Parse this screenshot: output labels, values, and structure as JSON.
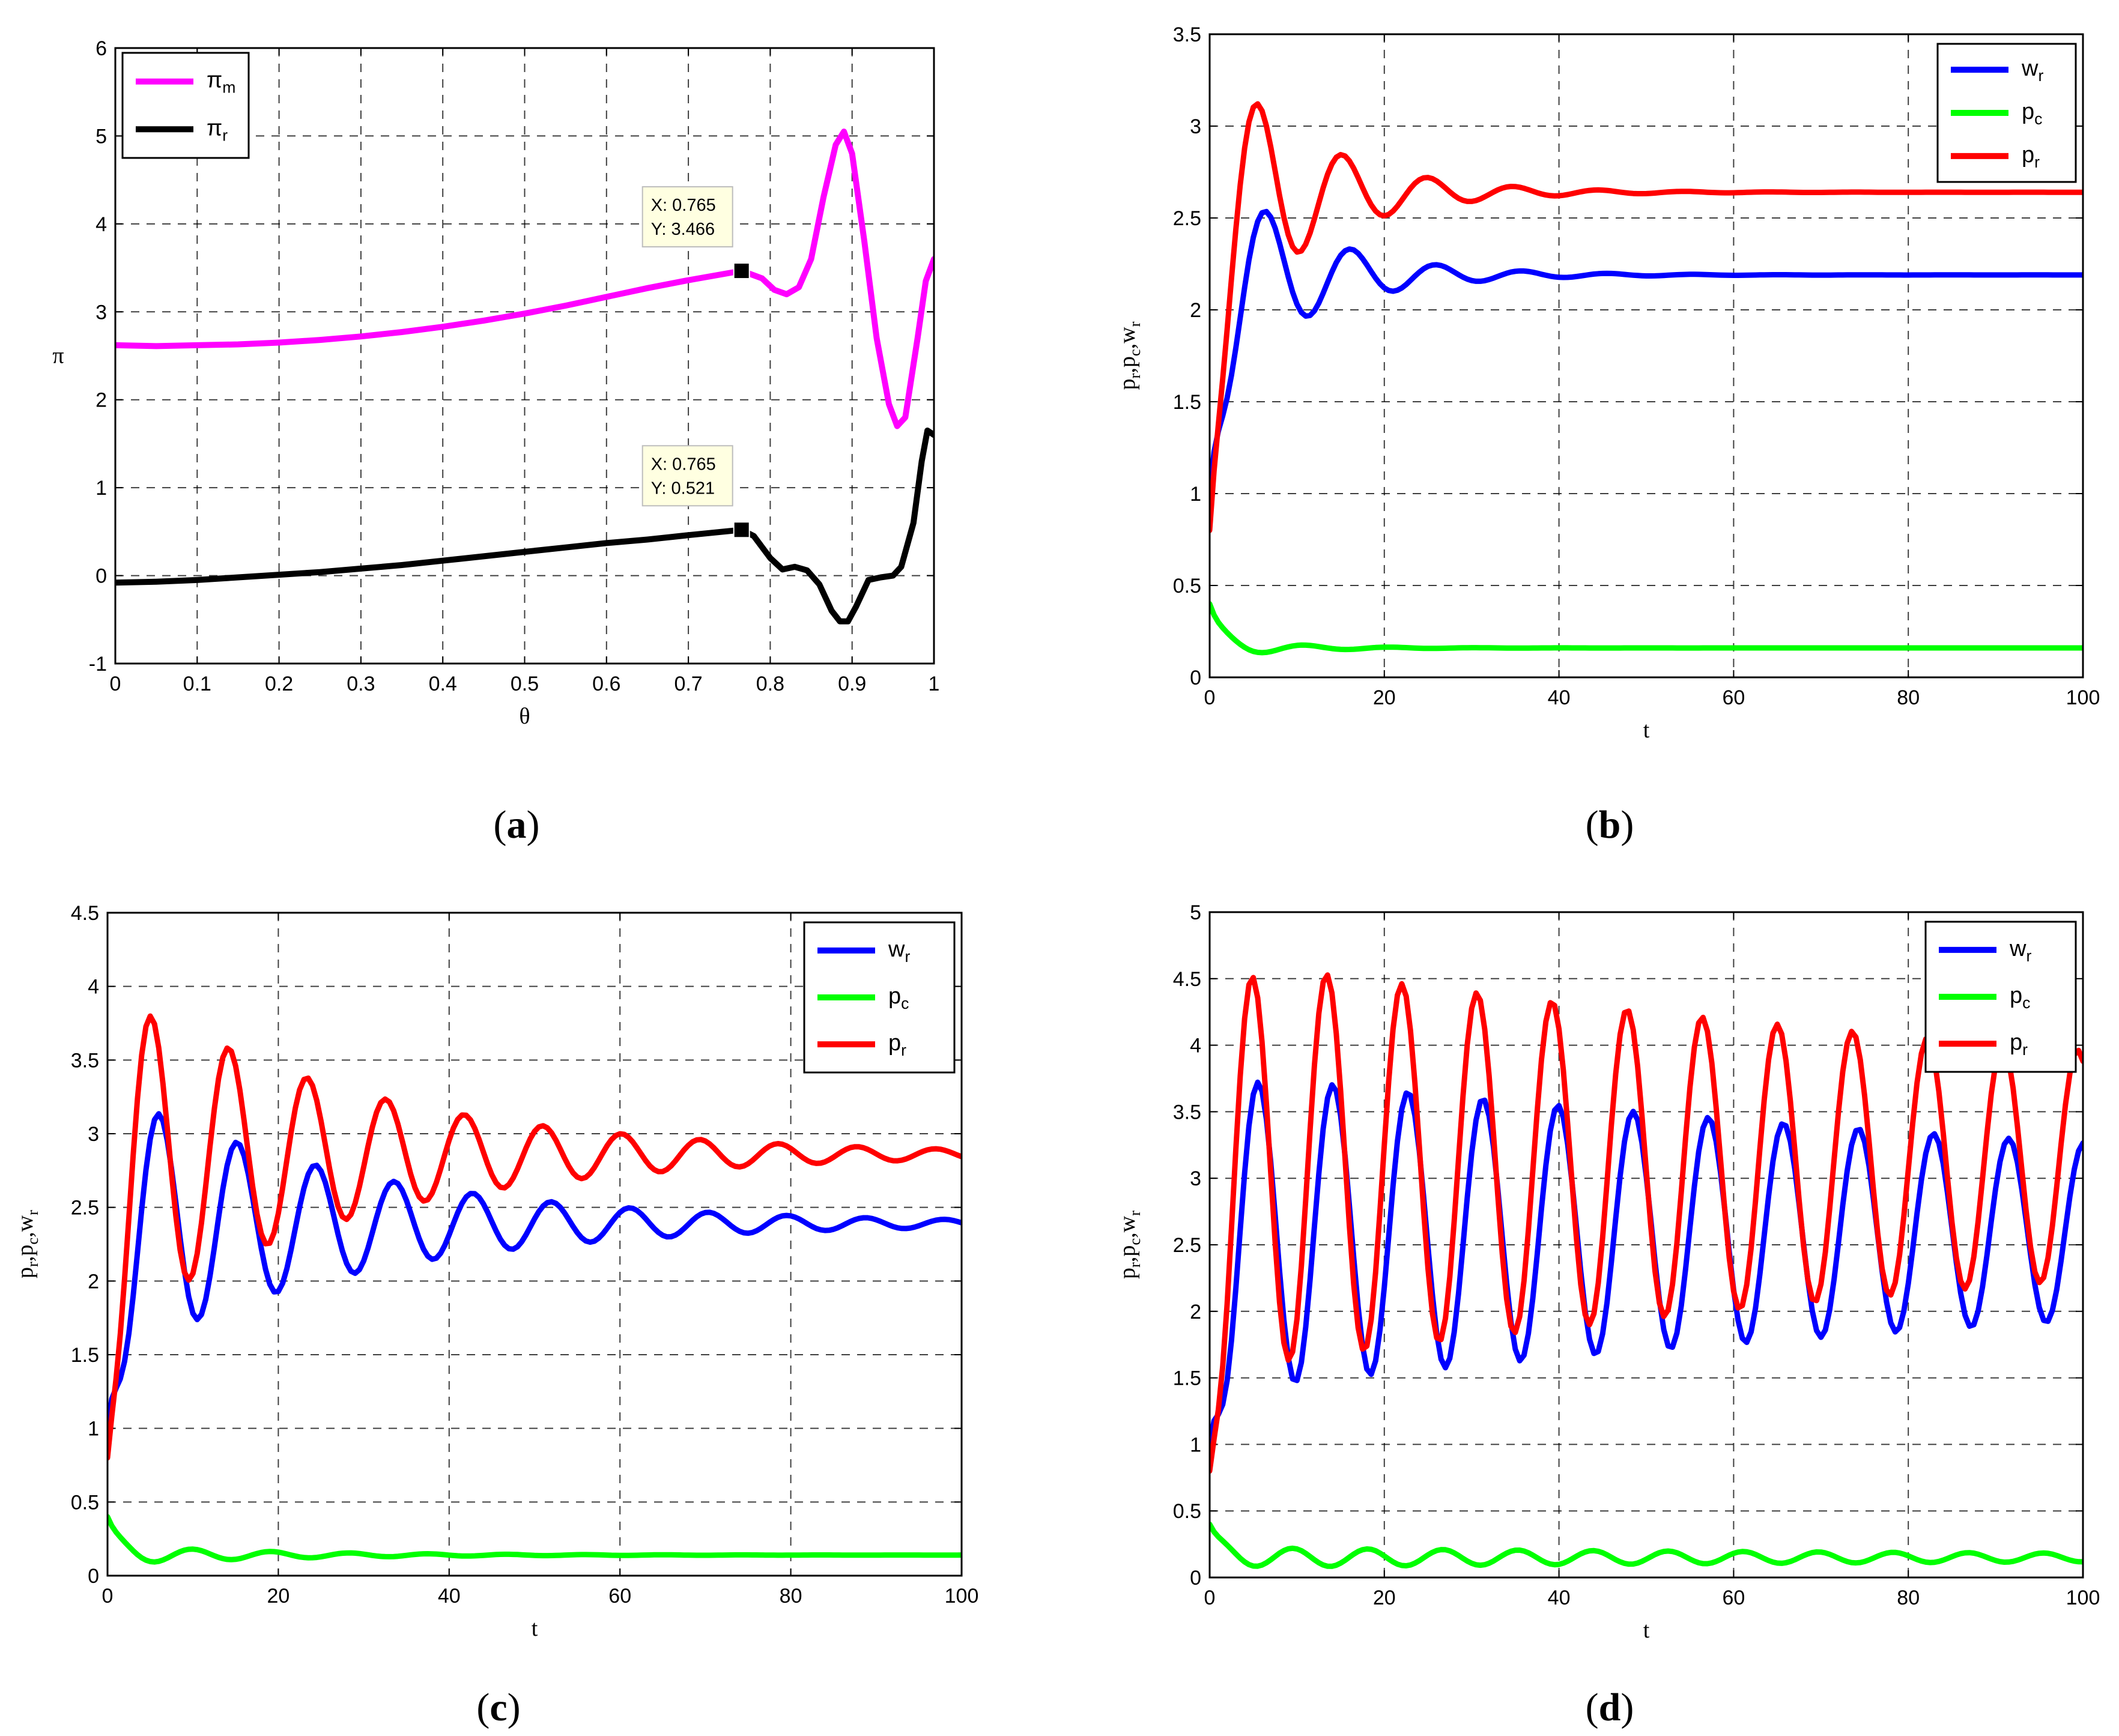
{
  "colors": {
    "magenta": "#ff00ff",
    "black": "#000000",
    "blue": "#0000ff",
    "green": "#00ff00",
    "red": "#ff0000",
    "tooltip_bg": "#ffffe1"
  },
  "chart_data": [
    {
      "type": "line",
      "panel_label": "a",
      "xlabel": "θ",
      "ylabel": "π",
      "xlim": [
        0,
        1
      ],
      "ylim": [
        -1,
        6
      ],
      "xticks": [
        "0",
        "0.1",
        "0.2",
        "0.3",
        "0.4",
        "0.5",
        "0.6",
        "0.7",
        "0.8",
        "0.9",
        "1"
      ],
      "yticks": [
        "-1",
        "0",
        "1",
        "2",
        "3",
        "4",
        "5",
        "6"
      ],
      "grid": true,
      "legend_position": "top-left",
      "series": [
        {
          "name": "π",
          "sub": "m",
          "color_key": "magenta",
          "points": [
            [
              0,
              2.62
            ],
            [
              0.05,
              2.61
            ],
            [
              0.1,
              2.62
            ],
            [
              0.15,
              2.63
            ],
            [
              0.2,
              2.65
            ],
            [
              0.25,
              2.68
            ],
            [
              0.3,
              2.72
            ],
            [
              0.35,
              2.77
            ],
            [
              0.4,
              2.83
            ],
            [
              0.45,
              2.9
            ],
            [
              0.5,
              2.98
            ],
            [
              0.55,
              3.07
            ],
            [
              0.6,
              3.17
            ],
            [
              0.65,
              3.27
            ],
            [
              0.7,
              3.36
            ],
            [
              0.765,
              3.466
            ],
            [
              0.79,
              3.38
            ],
            [
              0.805,
              3.25
            ],
            [
              0.82,
              3.2
            ],
            [
              0.835,
              3.28
            ],
            [
              0.85,
              3.6
            ],
            [
              0.865,
              4.3
            ],
            [
              0.88,
              4.9
            ],
            [
              0.89,
              5.05
            ],
            [
              0.9,
              4.8
            ],
            [
              0.915,
              3.8
            ],
            [
              0.93,
              2.7
            ],
            [
              0.945,
              1.95
            ],
            [
              0.955,
              1.7
            ],
            [
              0.965,
              1.8
            ],
            [
              0.98,
              2.7
            ],
            [
              0.99,
              3.35
            ],
            [
              1.0,
              3.6
            ]
          ]
        },
        {
          "name": "π",
          "sub": "r",
          "color_key": "black",
          "points": [
            [
              0,
              -0.08
            ],
            [
              0.05,
              -0.07
            ],
            [
              0.1,
              -0.05
            ],
            [
              0.15,
              -0.02
            ],
            [
              0.2,
              0.01
            ],
            [
              0.25,
              0.04
            ],
            [
              0.3,
              0.08
            ],
            [
              0.35,
              0.12
            ],
            [
              0.4,
              0.17
            ],
            [
              0.45,
              0.22
            ],
            [
              0.5,
              0.27
            ],
            [
              0.55,
              0.32
            ],
            [
              0.6,
              0.37
            ],
            [
              0.65,
              0.41
            ],
            [
              0.7,
              0.46
            ],
            [
              0.765,
              0.521
            ],
            [
              0.78,
              0.45
            ],
            [
              0.8,
              0.2
            ],
            [
              0.815,
              0.07
            ],
            [
              0.83,
              0.1
            ],
            [
              0.845,
              0.06
            ],
            [
              0.86,
              -0.1
            ],
            [
              0.875,
              -0.4
            ],
            [
              0.885,
              -0.52
            ],
            [
              0.895,
              -0.52
            ],
            [
              0.905,
              -0.35
            ],
            [
              0.92,
              -0.05
            ],
            [
              0.935,
              -0.02
            ],
            [
              0.95,
              0.0
            ],
            [
              0.96,
              0.1
            ],
            [
              0.975,
              0.6
            ],
            [
              0.985,
              1.3
            ],
            [
              0.992,
              1.65
            ],
            [
              1.0,
              1.6
            ]
          ]
        }
      ],
      "datatips": [
        {
          "x_text": "X: 0.765",
          "y_text": "Y: 3.466",
          "x": 0.765,
          "y": 3.466
        },
        {
          "x_text": "X: 0.765",
          "y_text": "Y: 0.521",
          "x": 0.765,
          "y": 0.521
        }
      ]
    },
    {
      "type": "line",
      "panel_label": "b",
      "xlabel": "t",
      "ylabel": "p_r,p_c,w_r",
      "xlim": [
        0,
        100
      ],
      "ylim": [
        0,
        3.5
      ],
      "xticks": [
        "0",
        "20",
        "40",
        "60",
        "80",
        "100"
      ],
      "yticks": [
        "0",
        "0.5",
        "1",
        "1.5",
        "2",
        "2.5",
        "3",
        "3.5"
      ],
      "grid": true,
      "legend_position": "top-right",
      "osc": {
        "w_r": {
          "start": 1.0,
          "mean": 2.19,
          "amp": 0.66,
          "period": 9.8,
          "decay": 10.5,
          "peak1": 6.5
        },
        "p_c": {
          "start": 0.4,
          "mean": 0.16,
          "amp": 0.06,
          "period": 9.8,
          "decay": 8,
          "peak1": 11
        },
        "p_r": {
          "start": 0.8,
          "mean": 2.64,
          "amp": 0.87,
          "period": 9.8,
          "decay": 10.5,
          "peak1": 5.5
        }
      },
      "legend": [
        {
          "name": "w",
          "sub": "r",
          "color_key": "blue"
        },
        {
          "name": "p",
          "sub": "c",
          "color_key": "green"
        },
        {
          "name": "p",
          "sub": "r",
          "color_key": "red"
        }
      ]
    },
    {
      "type": "line",
      "panel_label": "c",
      "xlabel": "t",
      "ylabel": "p_r,p_c,w_r",
      "xlim": [
        0,
        100
      ],
      "ylim": [
        0,
        4.5
      ],
      "xticks": [
        "0",
        "20",
        "40",
        "60",
        "80",
        "100"
      ],
      "yticks": [
        "0",
        "0.5",
        "1",
        "1.5",
        "2",
        "2.5",
        "3",
        "3.5",
        "4",
        "4.5"
      ],
      "grid": true,
      "legend_position": "top-right",
      "osc": {
        "w_r": {
          "start": 1.0,
          "mean": 2.39,
          "amp": 0.95,
          "period": 9.2,
          "decay": 28,
          "peak1": 6
        },
        "p_c": {
          "start": 0.4,
          "mean": 0.14,
          "amp": 0.07,
          "period": 9.2,
          "decay": 18,
          "peak1": 10
        },
        "p_r": {
          "start": 0.8,
          "mean": 2.86,
          "amp": 1.2,
          "period": 9.2,
          "decay": 28,
          "peak1": 5
        }
      },
      "legend": [
        {
          "name": "w",
          "sub": "r",
          "color_key": "blue"
        },
        {
          "name": "p",
          "sub": "c",
          "color_key": "green"
        },
        {
          "name": "p",
          "sub": "r",
          "color_key": "red"
        }
      ]
    },
    {
      "type": "line",
      "panel_label": "d",
      "xlabel": "t",
      "ylabel": "p_r,p_c,w_r",
      "xlim": [
        0,
        100
      ],
      "ylim": [
        0,
        5
      ],
      "xticks": [
        "0",
        "20",
        "40",
        "60",
        "80",
        "100"
      ],
      "yticks": [
        "0",
        "0.5",
        "1",
        "1.5",
        "2",
        "2.5",
        "3",
        "3.5",
        "4",
        "4.5",
        "5"
      ],
      "grid": true,
      "legend_position": "top-right",
      "osc": {
        "w_r": {
          "start": 1.0,
          "mean": 2.6,
          "amp": 1.2,
          "period": 8.6,
          "decay": 170,
          "peak1": 5.5
        },
        "p_c": {
          "start": 0.4,
          "mean": 0.15,
          "amp": 0.075,
          "period": 8.6,
          "decay": 120,
          "peak1": 9.5
        },
        "p_r": {
          "start": 0.8,
          "mean": 3.1,
          "amp": 1.55,
          "period": 8.6,
          "decay": 170,
          "peak1": 4.8
        }
      },
      "legend": [
        {
          "name": "w",
          "sub": "r",
          "color_key": "blue"
        },
        {
          "name": "p",
          "sub": "c",
          "color_key": "green"
        },
        {
          "name": "p",
          "sub": "r",
          "color_key": "red"
        }
      ]
    }
  ]
}
